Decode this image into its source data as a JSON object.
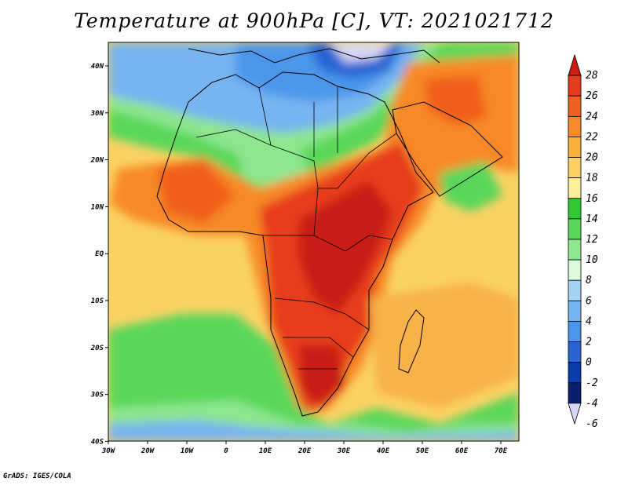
{
  "title": "Temperature at 900hPa [C], VT: 2021021712",
  "footer": "GrADS: IGES/COLA",
  "lon_ticks": [
    "30W",
    "20W",
    "10W",
    "0",
    "10E",
    "20E",
    "30E",
    "40E",
    "50E",
    "60E",
    "70E"
  ],
  "lat_ticks": [
    "40N",
    "30N",
    "20N",
    "10N",
    "EQ",
    "10S",
    "20S",
    "30S",
    "40S"
  ],
  "colorbar": {
    "labels": [
      "28",
      "26",
      "24",
      "22",
      "20",
      "18",
      "16",
      "14",
      "12",
      "10",
      "8",
      "6",
      "4",
      "2",
      "0",
      "-2",
      "-4",
      "-6"
    ],
    "colors": [
      "#c81e14",
      "#e63c1e",
      "#f0601e",
      "#f78a28",
      "#fab03a",
      "#fad264",
      "#fcf0a0",
      "#32c832",
      "#5ad75a",
      "#8ee68e",
      "#dcfadc",
      "#a6d2f5",
      "#78b4f0",
      "#4b96eb",
      "#2864d2",
      "#0a3caa",
      "#0a1e6e",
      "#d8d8f5"
    ]
  },
  "colors": {
    "ocean_warm": "#fad264",
    "ocean_mid": "#f7b248",
    "cool_green": "#5ad75a",
    "cool_blue": "#78b4f0",
    "hot_red": "#d8321a",
    "hot_orange": "#f0601e",
    "border": "#000000"
  }
}
